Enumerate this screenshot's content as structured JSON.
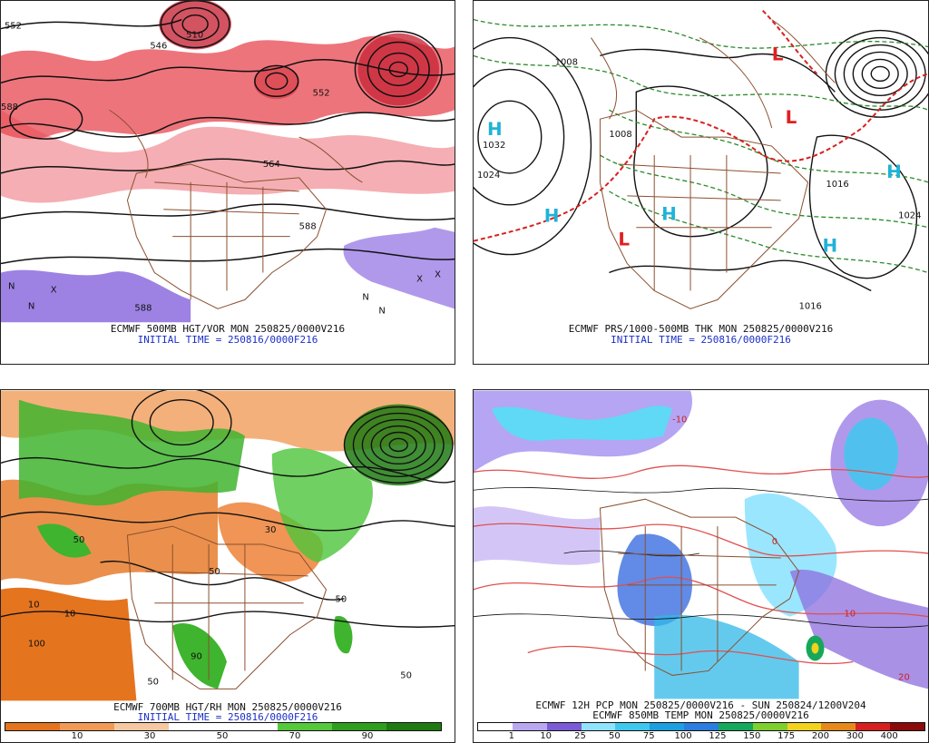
{
  "panels": [
    {
      "caption": "ECMWF 500MB HGT/VOR MON 250825/0000V216",
      "initial": "INITIAL TIME = 250816/0000F216",
      "labels": [
        "552",
        "546",
        "510",
        "552",
        "564",
        "588",
        "588",
        "588",
        "N",
        "X",
        "N",
        "X",
        "X",
        "N",
        "N"
      ]
    },
    {
      "caption": "ECMWF PRS/1000-500MB THK MON 250825/0000V216",
      "initial": "INITIAL TIME = 250816/0000F216",
      "labels": [
        "H",
        "H",
        "H",
        "H",
        "H",
        "1032",
        "1024",
        "1024",
        "1016",
        "1008",
        "1008",
        "L",
        "L",
        "L",
        "1016"
      ]
    },
    {
      "caption": "ECMWF 700MB HGT/RH MON 250825/0000V216",
      "initial": "INITIAL TIME = 250816/0000F216",
      "labels": [
        "10",
        "50",
        "10",
        "30",
        "50",
        "90",
        "50",
        "50",
        "50",
        "100"
      ]
    },
    {
      "caption": "ECMWF 12H PCP MON 250825/0000V216 - SUN 250824/1200V204",
      "caption2": "ECMWF 850MB TEMP MON 250825/0000V216",
      "labels": [
        "20",
        "10",
        "0",
        "-10"
      ]
    }
  ],
  "rh_scale": {
    "ticks": [
      "10",
      "30",
      "50",
      "70",
      "90"
    ],
    "colors": [
      "#e5741f",
      "#f29a55",
      "#f6c8a2",
      "#ffffff",
      "#ffffff",
      "#55c83c",
      "#2f9e1e",
      "#1f7a12"
    ]
  },
  "pcp_scale": {
    "ticks": [
      "1",
      "10",
      "25",
      "50",
      "75",
      "100",
      "125",
      "150",
      "175",
      "200",
      "300",
      "400"
    ],
    "colors": [
      "#ffffff",
      "#b9a8f0",
      "#7b5cd6",
      "#8fe3ff",
      "#3fc8ef",
      "#1e9fe0",
      "#2b7de0",
      "#16a85a",
      "#7fcf2f",
      "#f2d21c",
      "#e58a1a",
      "#d62020",
      "#8b0a0a"
    ]
  }
}
